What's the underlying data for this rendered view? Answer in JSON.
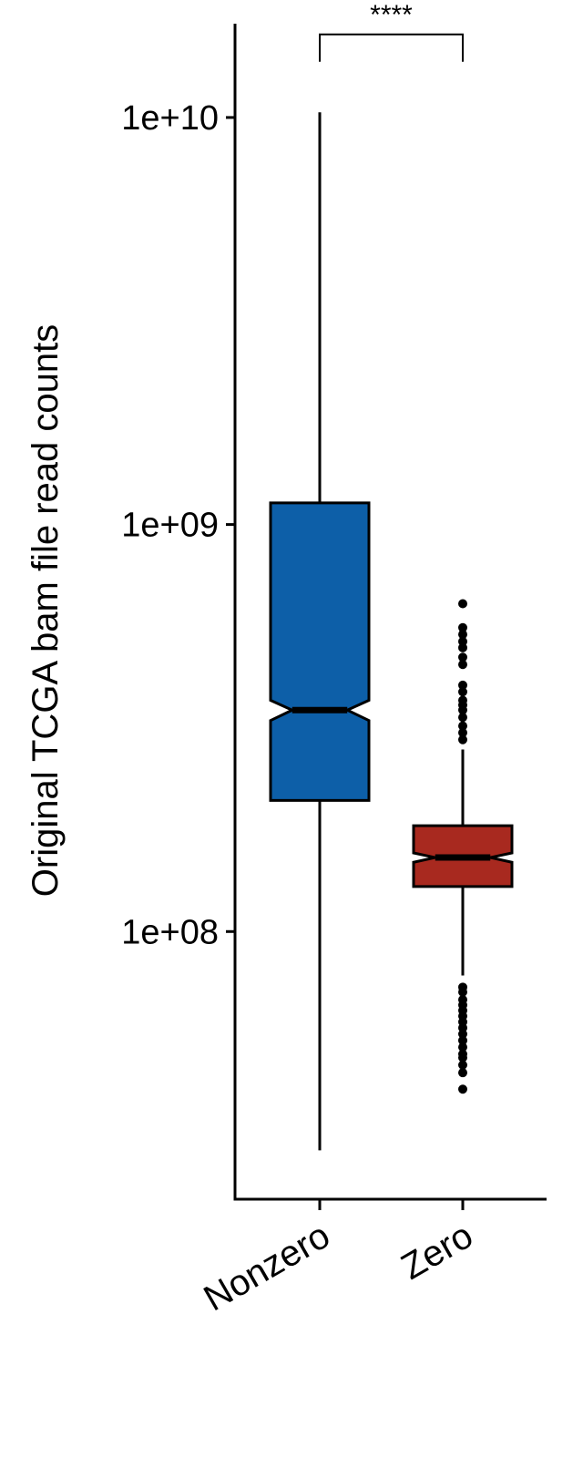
{
  "chart_data": {
    "type": "boxplot",
    "ylabel": "Original TCGA bam file read counts",
    "xlabel": "",
    "yscale": "log10",
    "ylim": [
      22000000,
      17000000000
    ],
    "yticks": [
      {
        "value": 100000000,
        "label": "1e+08"
      },
      {
        "value": 1000000000,
        "label": "1e+09"
      },
      {
        "value": 10000000000,
        "label": "1e+10"
      }
    ],
    "categories": [
      "Nonzero",
      "Zero"
    ],
    "boxes": [
      {
        "category": "Nonzero",
        "color": "#0d5fa8",
        "whisker_low": 29000000,
        "q1": 210000000,
        "median": 350000000,
        "q3": 1130000000,
        "whisker_high": 10300000000,
        "notch_low": 330000000,
        "notch_high": 370000000,
        "outliers": []
      },
      {
        "category": "Zero",
        "color": "#a8291f",
        "whisker_low": 78000000,
        "q1": 129000000,
        "median": 152000000,
        "q3": 182000000,
        "whisker_high": 280000000,
        "notch_low": 148000000,
        "notch_high": 156000000,
        "outliers": [
          639000000,
          558000000,
          537000000,
          516000000,
          498000000,
          472000000,
          453000000,
          403000000,
          388000000,
          370000000,
          360000000,
          350000000,
          336000000,
          320000000,
          308000000,
          296000000,
          73000000,
          71000000,
          68000000,
          66000000,
          64000000,
          62000000,
          60000000,
          58000000,
          56000000,
          54000000,
          52000000,
          50000000,
          49000000,
          47000000,
          45000000,
          41000000
        ]
      }
    ],
    "significance": {
      "label": "****",
      "between": [
        "Nonzero",
        "Zero"
      ],
      "y": 16000000000
    },
    "grid": false,
    "legend": "none"
  }
}
